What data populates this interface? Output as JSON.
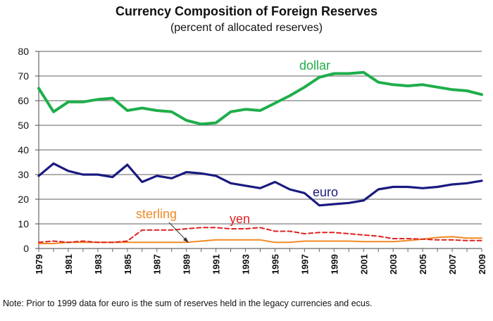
{
  "chart_data": {
    "type": "line",
    "title": "Currency Composition of Foreign Reserves",
    "subtitle": "(percent of allocated reserves)",
    "note": "Note:  Prior to 1999 data for euro is the sum of reserves held in the legacy currencies and  ecus.",
    "xlabel": "",
    "ylabel": "",
    "x": [
      1979,
      1980,
      1981,
      1982,
      1983,
      1984,
      1985,
      1986,
      1987,
      1988,
      1989,
      1990,
      1991,
      1992,
      1993,
      1994,
      1995,
      1996,
      1997,
      1998,
      1999,
      2000,
      2001,
      2002,
      2003,
      2004,
      2005,
      2006,
      2007,
      2008,
      2009
    ],
    "xticks": [
      "1979",
      "1981",
      "1983",
      "1985",
      "1987",
      "1989",
      "1991",
      "1993",
      "1995",
      "1997",
      "1999",
      "2001",
      "2003",
      "2005",
      "2007",
      "2009"
    ],
    "xlim": [
      1979,
      2009
    ],
    "ylim": [
      0,
      80
    ],
    "yticks": [
      "0",
      "10",
      "20",
      "30",
      "40",
      "50",
      "60",
      "70",
      "80"
    ],
    "grid": "horizontal",
    "legend": "none",
    "series": [
      {
        "name": "dollar",
        "color": "#1fae4b",
        "style": "solid",
        "values": [
          65,
          55.5,
          59.5,
          59.5,
          60.5,
          61,
          56,
          57,
          56,
          55.5,
          52,
          50.5,
          51,
          55.5,
          56.5,
          56,
          59,
          62,
          65.5,
          69.5,
          71,
          71,
          71.5,
          67.5,
          66.5,
          66,
          66.5,
          65.5,
          64.5,
          64,
          62.5
        ]
      },
      {
        "name": "euro",
        "color": "#1a1a80",
        "style": "solid",
        "values": [
          29.5,
          34.5,
          31.5,
          30,
          30,
          29,
          34,
          27,
          29.5,
          28.5,
          31,
          30.5,
          29.5,
          26.5,
          25.5,
          24.5,
          27,
          24,
          22.5,
          17.5,
          18,
          18.5,
          19.5,
          24,
          25,
          25,
          24.5,
          25,
          26,
          26.5,
          27.5
        ]
      },
      {
        "name": "sterling",
        "color": "#f08a24",
        "style": "solid",
        "values": [
          2,
          2,
          2.5,
          2.5,
          2.5,
          2.5,
          2.5,
          2.5,
          2.5,
          2.5,
          2.5,
          3,
          3.5,
          3.5,
          3.5,
          3.5,
          2.5,
          2.5,
          3,
          3,
          3,
          3,
          2.8,
          2.8,
          2.8,
          3.2,
          3.8,
          4.5,
          4.8,
          4.2,
          4.2
        ]
      },
      {
        "name": "yen",
        "color": "#e02020",
        "style": "dashed",
        "values": [
          2.5,
          3,
          2.5,
          3,
          2.5,
          2.5,
          3,
          7.5,
          7.5,
          7.5,
          8,
          8.5,
          8.5,
          8,
          8,
          8.5,
          7,
          7,
          6,
          6.5,
          6.5,
          6,
          5.5,
          5,
          4,
          4,
          3.8,
          3.5,
          3.5,
          3.2,
          3.2
        ]
      }
    ],
    "annotations": [
      {
        "text": "dollar",
        "color": "#1fae4b"
      },
      {
        "text": "euro",
        "color": "#1a1a80"
      },
      {
        "text": "sterling",
        "color": "#f08a24"
      },
      {
        "text": "yen",
        "color": "#e02020"
      }
    ]
  }
}
